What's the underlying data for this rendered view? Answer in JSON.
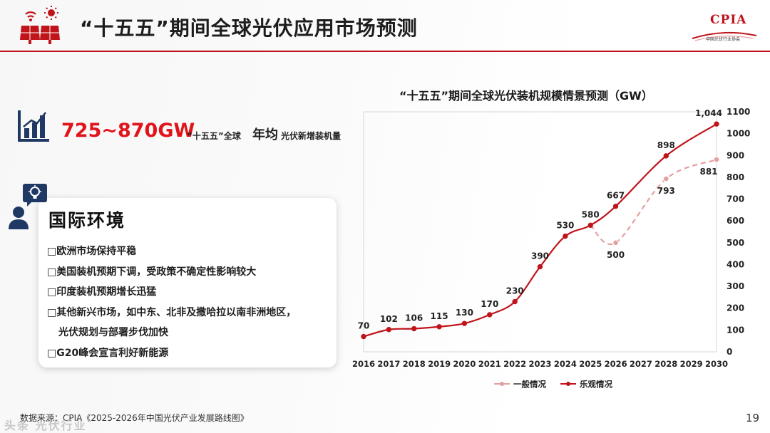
{
  "header": {
    "title": "“十五五”期间全球光伏应用市场预测",
    "logo_text": "CPIA",
    "logo_sub": "中国光伏行业协会"
  },
  "stat": {
    "range": "725~870GW",
    "q1": "“十五五”全球",
    "q2": "年均",
    "q3": "光伏新增装机量"
  },
  "environment": {
    "title": "国际环境",
    "bullets": [
      "□欧洲市场保持平稳",
      "□美国装机预期下调，受政策不确定性影响较大",
      "□印度装机预期增长迅猛",
      "□其他新兴市场，如中东、北非及撒哈拉以南非洲地区，",
      "光伏规划与部署步伐加快",
      "□G20峰会宣言利好新能源"
    ]
  },
  "chart_data": {
    "type": "line",
    "title": "“十五五”期间全球光伏装机规模情景预测（GW）",
    "categories": [
      "2016",
      "2017",
      "2018",
      "2019",
      "2020",
      "2021",
      "2022",
      "2023",
      "2024",
      "2025",
      "2026",
      "2027",
      "2028",
      "2029",
      "2030"
    ],
    "ylim": [
      0,
      1100
    ],
    "yticks": [
      0,
      100,
      200,
      300,
      400,
      500,
      600,
      700,
      800,
      900,
      1000,
      1100
    ],
    "legend_position": "bottom",
    "series": [
      {
        "name": "一般情况",
        "color": "#e4a0a0",
        "dashed": true,
        "points": [
          [
            "2025",
            580
          ],
          [
            "2026",
            500
          ],
          [
            "2028",
            793
          ],
          [
            "2030",
            881
          ]
        ],
        "labels": [
          "500",
          "793",
          "881"
        ]
      },
      {
        "name": "乐观情况",
        "color": "#c0141b",
        "dashed": false,
        "points": [
          [
            "2016",
            70
          ],
          [
            "2017",
            102
          ],
          [
            "2018",
            106
          ],
          [
            "2019",
            115
          ],
          [
            "2020",
            130
          ],
          [
            "2021",
            170
          ],
          [
            "2022",
            230
          ],
          [
            "2023",
            390
          ],
          [
            "2024",
            530
          ],
          [
            "2025",
            580
          ],
          [
            "2026",
            667
          ],
          [
            "2028",
            898
          ],
          [
            "2030",
            1044
          ]
        ],
        "labels": [
          "70",
          "102",
          "106",
          "115",
          "130",
          "170",
          "230",
          "390",
          "530",
          "580",
          "667",
          "898",
          "1,044"
        ]
      }
    ]
  },
  "footer": {
    "source": "数据来源：CPIA《2025-2026年中国光伏产业发展路线图》",
    "page": "19",
    "watermark": "头条 光伏行业"
  }
}
